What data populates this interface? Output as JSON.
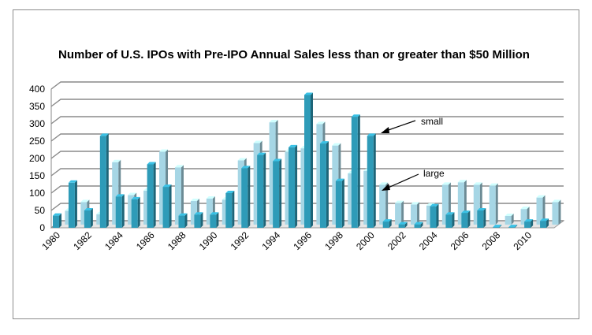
{
  "chart_data": {
    "type": "bar",
    "title": "Number of U.S. IPOs with Pre-IPO Annual Sales less than or greater than $50 Million",
    "xlabel": "",
    "ylabel": "",
    "ylim": [
      0,
      400
    ],
    "yticks": [
      0,
      50,
      100,
      150,
      200,
      250,
      300,
      350,
      400
    ],
    "grid": true,
    "categories": [
      "1980",
      "1981",
      "1982",
      "1983",
      "1984",
      "1985",
      "1986",
      "1987",
      "1988",
      "1989",
      "1990",
      "1991",
      "1992",
      "1993",
      "1994",
      "1995",
      "1996",
      "1997",
      "1998",
      "1999",
      "2000",
      "2001",
      "2002",
      "2003",
      "2004",
      "2005",
      "2006",
      "2007",
      "2008",
      "2009",
      "2010",
      "2011"
    ],
    "xtick_labels": [
      "1980",
      "1982",
      "1984",
      "1986",
      "1988",
      "1990",
      "1992",
      "1994",
      "1996",
      "1998",
      "2000",
      "2002",
      "2004",
      "2006",
      "2008",
      "2010"
    ],
    "series": [
      {
        "name": "small",
        "color": "#2e9bb8",
        "values": [
          35,
          130,
          50,
          265,
          90,
          82,
          183,
          118,
          35,
          38,
          38,
          100,
          172,
          210,
          192,
          232,
          383,
          243,
          135,
          320,
          265,
          18,
          10,
          10,
          62,
          38,
          43,
          50,
          2,
          2,
          18,
          20
        ]
      },
      {
        "name": "large",
        "color": "#a6d6e5",
        "values": [
          40,
          65,
          30,
          180,
          85,
          98,
          210,
          165,
          68,
          75,
          72,
          185,
          235,
          295,
          210,
          220,
          290,
          228,
          148,
          155,
          115,
          62,
          58,
          55,
          115,
          122,
          115,
          112,
          25,
          45,
          78,
          65
        ]
      }
    ],
    "annotations": [
      {
        "text": "small",
        "target_series": "small",
        "target_category": "2000"
      },
      {
        "text": "large",
        "target_series": "large",
        "target_category": "2000"
      }
    ]
  }
}
